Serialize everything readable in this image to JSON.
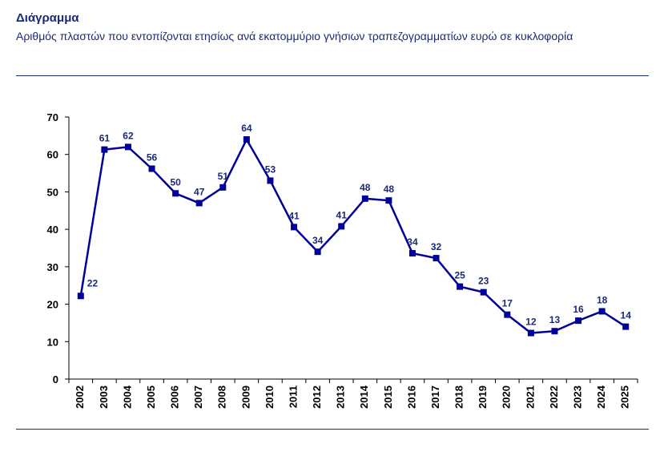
{
  "header": {
    "title": "Διάγραμμα",
    "subtitle": "Αριθμός πλαστών που εντοπίζονται ετησίως ανά εκατομμύριο γνήσιων τραπεζογραμματίων  ευρώ σε κυκλοφορία"
  },
  "colors": {
    "series": "#000099",
    "text": "#1a2a7a"
  },
  "chart_data": {
    "type": "line",
    "title": "Διάγραμμα",
    "subtitle": "Αριθμός πλαστών που εντοπίζονται ετησίως ανά εκατομμύριο γνήσιων τραπεζογραμματίων  ευρώ σε κυκλοφορία",
    "xlabel": "",
    "ylabel": "",
    "categories": [
      "2002",
      "2003",
      "2004",
      "2005",
      "2006",
      "2007",
      "2008",
      "2009",
      "2010",
      "2011",
      "2012",
      "2013",
      "2014",
      "2015",
      "2016",
      "2017",
      "2018",
      "2019",
      "2020",
      "2021",
      "2022",
      "2023",
      "2024",
      "2025"
    ],
    "values": [
      22.2,
      61.3,
      62.0,
      56.2,
      49.6,
      47.0,
      51.2,
      64.0,
      53.0,
      40.6,
      34.0,
      40.8,
      48.2,
      47.7,
      33.6,
      32.3,
      24.7,
      23.2,
      17.2,
      12.3,
      12.8,
      15.6,
      18.1,
      14.0
    ],
    "data_labels": [
      "22",
      "61",
      "62",
      "56",
      "50",
      "47",
      "51",
      "64",
      "53",
      "41",
      "34",
      "41",
      "48",
      "48",
      "34",
      "32",
      "25",
      "23",
      "17",
      "12",
      "13",
      "16",
      "18",
      "14"
    ],
    "yticks": [
      "0",
      "10",
      "20",
      "30",
      "40",
      "50",
      "60",
      "70"
    ],
    "ylim": [
      0,
      70
    ],
    "grid": false,
    "legend": "none"
  }
}
